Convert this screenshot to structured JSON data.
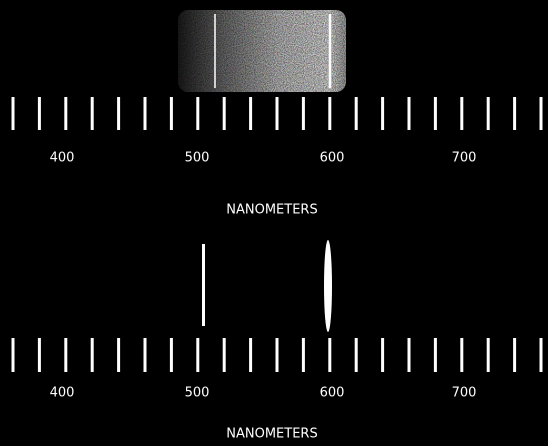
{
  "panels": [
    {
      "tick_labels": [
        "400",
        "500",
        "600",
        "700"
      ],
      "axis_label": "NANOMETERS"
    },
    {
      "tick_labels": [
        "400",
        "500",
        "600",
        "700"
      ],
      "axis_label": "NANOMETERS"
    }
  ]
}
